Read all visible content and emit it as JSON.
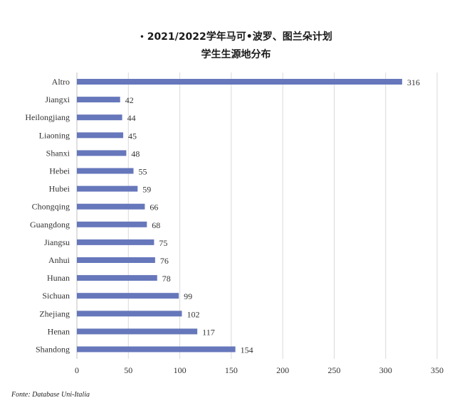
{
  "title_line1": "2021/2022学年马可•波罗、图兰朵计划",
  "title_line2": "学生生源地分布",
  "source": "Fonte: Database Uni-Italia",
  "chart_data": {
    "type": "bar",
    "orientation": "horizontal",
    "categories": [
      "Altro",
      "Jiangxi",
      "Heilongjiang",
      "Liaoning",
      "Shanxi",
      "Hebei",
      "Hubei",
      "Chongqing",
      "Guangdong",
      "Jiangsu",
      "Anhui",
      "Hunan",
      "Sichuan",
      "Zhejiang",
      "Henan",
      "Shandong"
    ],
    "values": [
      316,
      42,
      44,
      45,
      48,
      55,
      59,
      66,
      68,
      75,
      76,
      78,
      99,
      102,
      117,
      154
    ],
    "xlim": [
      0,
      350
    ],
    "xticks": [
      0,
      50,
      100,
      150,
      200,
      250,
      300,
      350
    ],
    "grid": "vertical",
    "bar_color": "#6677bb",
    "data_labels": true
  }
}
